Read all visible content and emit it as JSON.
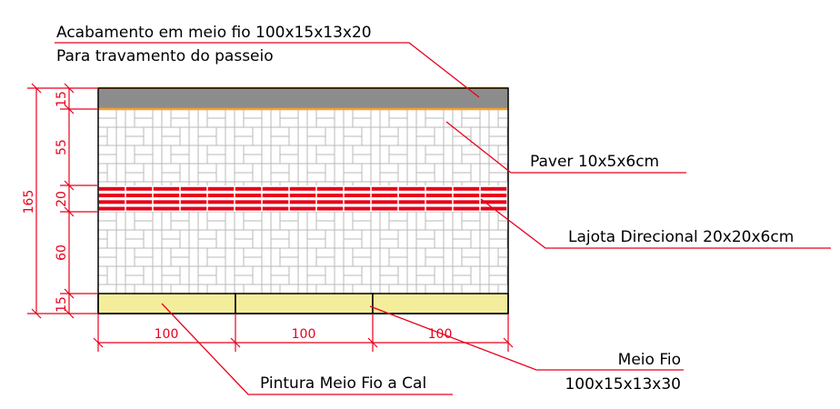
{
  "labels": {
    "acabamento_line1": "Acabamento em meio fio 100x15x13x20",
    "acabamento_line2": "Para travamento do passeio",
    "paver": "Paver 10x5x6cm",
    "lajota": "Lajota Direcional 20x20x6cm",
    "meio_fio_line1": "Meio Fio",
    "meio_fio_line2": "100x15x13x30",
    "pintura": "Pintura Meio Fio a Cal"
  },
  "dimensions": {
    "total": "165",
    "segments": [
      "15",
      "55",
      "20",
      "60",
      "15"
    ],
    "horizontal": [
      "100",
      "100",
      "100"
    ]
  },
  "colors": {
    "dimension_red": "#e8001c",
    "curb_gray": "#8c8c8c",
    "curb_edge_orange": "#f5a030",
    "meio_fio_yellow": "#f4ee9c",
    "directional_red": "#e8001c",
    "paver_grid": "#b8b8b8"
  }
}
